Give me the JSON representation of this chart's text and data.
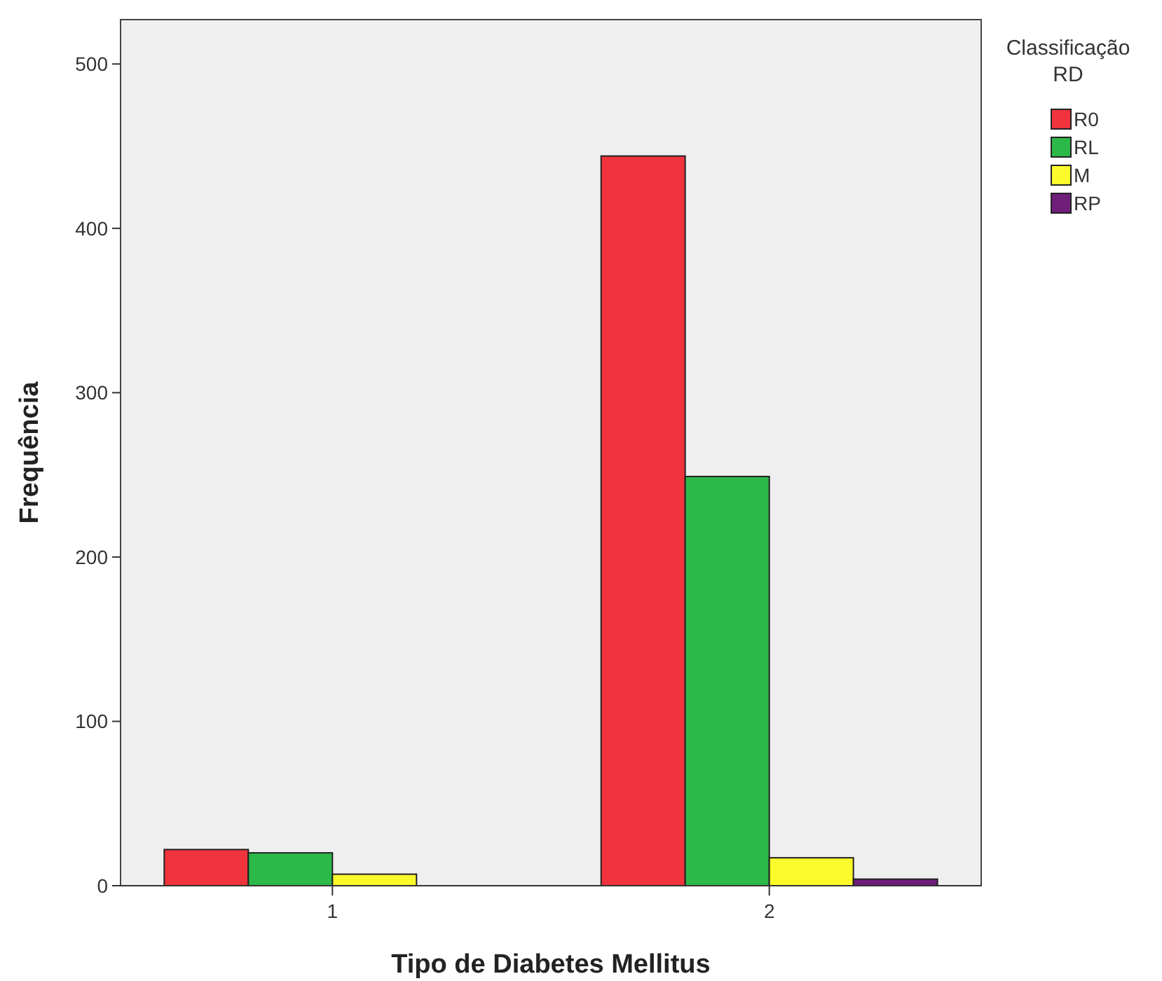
{
  "chart_data": {
    "type": "bar",
    "xlabel": "Tipo de Diabetes Mellitus",
    "ylabel": "Frequência",
    "legend_title": "Classificação RD",
    "categories": [
      "1",
      "2"
    ],
    "series": [
      {
        "name": "R0",
        "color": "#f0333c",
        "values": [
          22,
          444
        ]
      },
      {
        "name": "RL",
        "color": "#2db84a",
        "values": [
          20,
          249
        ]
      },
      {
        "name": "M",
        "color": "#fbfb2c",
        "values": [
          7,
          17
        ]
      },
      {
        "name": "RP",
        "color": "#6f1e7a",
        "values": [
          0,
          4
        ]
      }
    ],
    "ylim": [
      0,
      527
    ],
    "yticks": [
      0,
      100,
      200,
      300,
      400,
      500
    ],
    "grid": false,
    "legend": "top right"
  }
}
